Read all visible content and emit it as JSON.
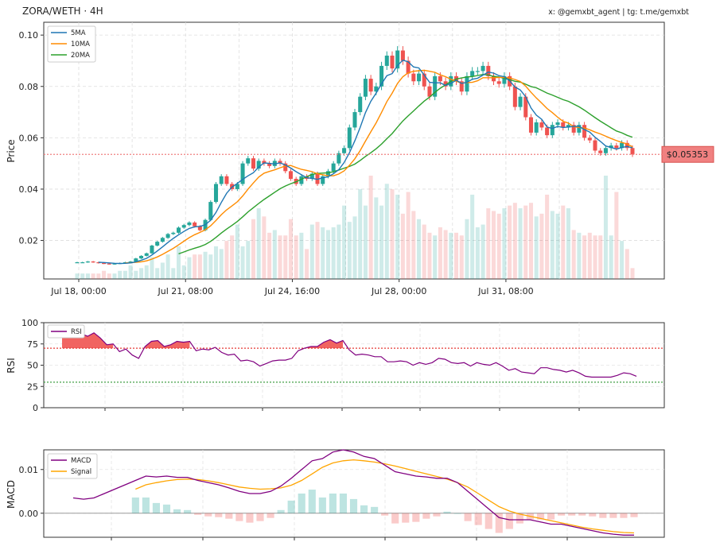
{
  "header": {
    "title": "ZORA/WETH · 4H",
    "credit": "x: @gemxbt_agent | tg: t.me/gemxbt"
  },
  "colors": {
    "up": "#26a69a",
    "down": "#ef5350",
    "ma5": "#1f77b4",
    "ma10": "#ff8c00",
    "ma20": "#2ca02c",
    "rsi": "#800080",
    "macd": "#800080",
    "signal": "#ffa500",
    "price_tag": "#f08080"
  },
  "chart_data": [
    {
      "type": "candlestick",
      "ylabel": "Price",
      "ylim": [
        0.005,
        0.105
      ],
      "yticks": [
        0.02,
        0.04,
        0.06,
        0.08,
        0.1
      ],
      "ytick_labels": [
        "0.02",
        "0.04",
        "0.06",
        "0.08",
        "0.10"
      ],
      "x_tick_labels": [
        "Jul 18, 00:00",
        "Jul 21, 08:00",
        "Jul 24, 16:00",
        "Jul 28, 00:00",
        "Jul 31, 08:00"
      ],
      "x_tick_index": [
        0,
        20,
        40,
        60,
        80
      ],
      "grid": true,
      "legend": "top-left",
      "series_names": [
        "5MA",
        "10MA",
        "20MA"
      ],
      "current_price": 0.05353,
      "current_price_label": "$0.05353",
      "closes": [
        0.0115,
        0.0115,
        0.0118,
        0.0115,
        0.0112,
        0.011,
        0.0108,
        0.011,
        0.0112,
        0.0115,
        0.0118,
        0.013,
        0.014,
        0.015,
        0.018,
        0.0195,
        0.021,
        0.0225,
        0.023,
        0.025,
        0.026,
        0.027,
        0.0255,
        0.024,
        0.028,
        0.035,
        0.042,
        0.045,
        0.042,
        0.04,
        0.042,
        0.05,
        0.052,
        0.048,
        0.051,
        0.05,
        0.049,
        0.051,
        0.05,
        0.047,
        0.044,
        0.042,
        0.045,
        0.044,
        0.046,
        0.042,
        0.045,
        0.047,
        0.05,
        0.054,
        0.056,
        0.064,
        0.07,
        0.076,
        0.083,
        0.078,
        0.08,
        0.088,
        0.092,
        0.087,
        0.094,
        0.09,
        0.085,
        0.082,
        0.085,
        0.08,
        0.076,
        0.084,
        0.082,
        0.08,
        0.084,
        0.082,
        0.078,
        0.084,
        0.086,
        0.086,
        0.088,
        0.084,
        0.082,
        0.081,
        0.084,
        0.08,
        0.072,
        0.076,
        0.068,
        0.062,
        0.066,
        0.064,
        0.061,
        0.065,
        0.066,
        0.064,
        0.065,
        0.062,
        0.065,
        0.06,
        0.059,
        0.055,
        0.054,
        0.056,
        0.057,
        0.056,
        0.058,
        0.056,
        0.0535
      ],
      "volume": [
        2,
        2,
        2,
        2,
        2,
        3,
        2,
        2,
        3,
        3,
        5,
        3,
        4,
        5,
        8,
        4,
        6,
        9,
        4,
        12,
        5,
        8,
        9,
        9,
        10,
        9,
        12,
        11,
        14,
        16,
        20,
        12,
        14,
        22,
        26,
        23,
        17,
        18,
        16,
        16,
        22,
        16,
        17,
        11,
        20,
        21,
        19,
        18,
        19,
        20,
        27,
        21,
        23,
        33,
        27,
        38,
        30,
        27,
        35,
        33,
        31,
        24,
        32,
        25,
        22,
        20,
        17,
        16,
        19,
        18,
        17,
        17,
        16,
        22,
        31,
        19,
        20,
        26,
        25,
        24,
        26,
        27,
        28,
        26,
        27,
        28,
        23,
        24,
        31,
        25,
        24,
        27,
        26,
        18,
        17,
        16,
        17,
        16,
        16,
        38,
        16,
        32,
        14,
        11,
        4
      ]
    },
    {
      "type": "line",
      "ylabel": "RSI",
      "ylim": [
        0,
        100
      ],
      "yticks": [
        0,
        25,
        50,
        75,
        100
      ],
      "overbought": 70,
      "oversold": 30,
      "legend": "top-left",
      "series": [
        {
          "name": "RSI",
          "values": [
            90,
            90,
            85,
            87,
            84,
            88,
            82,
            74,
            75,
            66,
            69,
            62,
            58,
            72,
            78,
            79,
            72,
            74,
            78,
            77,
            78,
            67,
            69,
            68,
            71,
            65,
            62,
            63,
            55,
            56,
            54,
            49,
            52,
            55,
            56,
            56,
            58,
            67,
            70,
            72,
            72,
            77,
            80,
            76,
            79,
            68,
            62,
            63,
            62,
            60,
            60,
            54,
            54,
            55,
            54,
            50,
            53,
            51,
            53,
            58,
            57,
            53,
            52,
            53,
            49,
            53,
            51,
            50,
            53,
            49,
            44,
            46,
            42,
            41,
            40,
            47,
            47,
            45,
            44,
            42,
            44,
            41,
            37,
            36,
            36,
            36,
            36,
            38,
            41,
            40,
            37
          ]
        }
      ]
    },
    {
      "type": "line",
      "ylabel": "MACD",
      "ylim": [
        -0.0055,
        0.0145
      ],
      "yticks": [
        0.0,
        0.01
      ],
      "ytick_labels": [
        "0.00",
        "0.01"
      ],
      "legend": "top-left",
      "series": [
        {
          "name": "MACD",
          "values": [
            0.0035,
            0.0032,
            0.0035,
            0.0045,
            0.0055,
            0.0065,
            0.0075,
            0.0085,
            0.0083,
            0.0085,
            0.0082,
            0.0082,
            0.0075,
            0.007,
            0.0065,
            0.0058,
            0.005,
            0.0045,
            0.0045,
            0.005,
            0.0062,
            0.008,
            0.01,
            0.012,
            0.0125,
            0.014,
            0.0145,
            0.014,
            0.013,
            0.0125,
            0.011,
            0.0095,
            0.009,
            0.0085,
            0.0083,
            0.008,
            0.008,
            0.007,
            0.005,
            0.003,
            0.001,
            -0.001,
            -0.0015,
            -0.0015,
            -0.0015,
            -0.002,
            -0.0025,
            -0.0025,
            -0.003,
            -0.0035,
            -0.004,
            -0.0045,
            -0.0048,
            -0.005,
            -0.005
          ]
        },
        {
          "name": "Signal",
          "values": [
            null,
            null,
            null,
            null,
            null,
            null,
            0.0055,
            0.0065,
            0.007,
            0.0074,
            0.0077,
            0.0078,
            0.0077,
            0.0074,
            0.007,
            0.0065,
            0.006,
            0.0057,
            0.0055,
            0.0056,
            0.0058,
            0.0064,
            0.0075,
            0.009,
            0.0105,
            0.0115,
            0.012,
            0.0122,
            0.012,
            0.0117,
            0.0113,
            0.0108,
            0.0102,
            0.0096,
            0.009,
            0.0084,
            0.0078,
            0.007,
            0.006,
            0.0045,
            0.003,
            0.0015,
            0.0005,
            -0.0002,
            -0.0007,
            -0.0012,
            -0.0017,
            -0.0022,
            -0.0027,
            -0.0032,
            -0.0036,
            -0.0039,
            -0.0042,
            -0.0044,
            -0.0045
          ]
        }
      ]
    }
  ]
}
